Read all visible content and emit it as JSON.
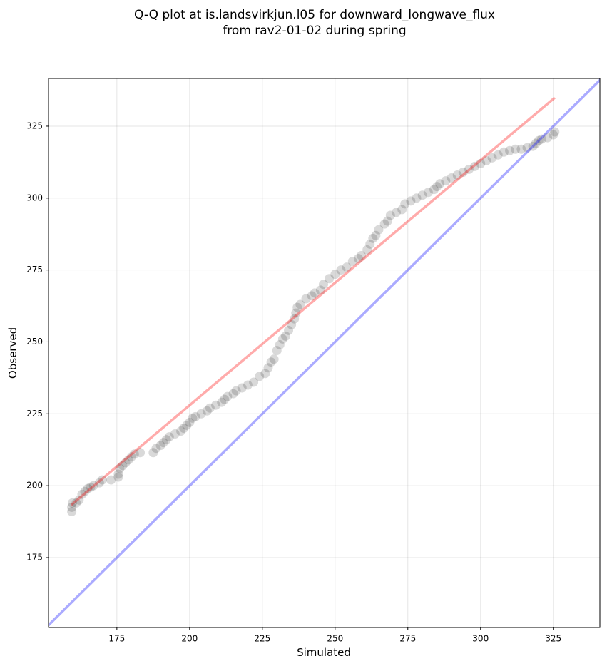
{
  "chart_data": {
    "type": "scatter",
    "title": [
      "Q-Q plot at is.landsvirkjun.l05 for downward_longwave_flux",
      "from rav2-01-02 during spring"
    ],
    "x_label": "Simulated",
    "y_label": "Observed",
    "xlim": [
      151.5,
      341
    ],
    "ylim": [
      150.7,
      341.6
    ],
    "xticks": [
      175,
      200,
      225,
      250,
      275,
      300,
      325
    ],
    "yticks": [
      175,
      200,
      225,
      250,
      275,
      300,
      325
    ],
    "grid": true,
    "points": {
      "color": "#000000",
      "alpha": 0.15,
      "x": [
        159.5,
        159.5,
        159.7,
        161,
        162,
        163,
        164,
        165,
        166,
        167,
        169,
        170,
        173,
        175.5,
        175.5,
        176,
        177,
        178,
        179,
        180,
        181,
        183,
        187.5,
        188.5,
        190,
        191,
        192,
        193,
        195,
        197,
        198,
        199,
        200,
        201,
        202,
        204,
        206,
        207,
        209,
        211,
        212,
        213,
        215,
        216,
        218,
        220,
        222,
        224,
        226,
        227,
        228,
        229,
        230,
        231,
        232,
        233,
        234,
        235,
        236,
        236.5,
        237,
        238,
        240,
        242,
        243,
        245,
        246,
        248,
        250,
        252,
        254,
        256,
        258,
        259,
        261,
        262,
        263,
        264,
        265,
        267,
        268,
        269,
        271,
        273,
        274,
        276,
        278,
        280,
        282,
        284,
        285,
        286,
        288,
        290,
        292,
        294,
        296,
        298,
        300,
        302,
        304,
        306,
        308,
        310,
        312,
        314,
        316,
        318,
        319,
        320,
        321,
        323,
        325,
        325.5
      ],
      "y": [
        191,
        192.5,
        194,
        194,
        195,
        197,
        198,
        199,
        199.5,
        200,
        201,
        202,
        202,
        203,
        204,
        206,
        207,
        208,
        209,
        210,
        211,
        211.5,
        211.5,
        213,
        214,
        215,
        216,
        217,
        218,
        219,
        220,
        221,
        222,
        223.5,
        224,
        225,
        226,
        227,
        228,
        229,
        230,
        231,
        232,
        233,
        234,
        235,
        236,
        238,
        239,
        241,
        243,
        244,
        247,
        249,
        251,
        252,
        254,
        256,
        258,
        260,
        262,
        263,
        265,
        266,
        267,
        268,
        270,
        272,
        273.5,
        275,
        276,
        278,
        279,
        280,
        282,
        284,
        286,
        287,
        289,
        291,
        292,
        294,
        295,
        296,
        298,
        299,
        300,
        301,
        302,
        303,
        304,
        305,
        306,
        307,
        308,
        309,
        310,
        311,
        312,
        313,
        314,
        315,
        316,
        316.5,
        317,
        317,
        317.5,
        318,
        319,
        320,
        320.5,
        321,
        322,
        323
      ]
    },
    "reference_lines": [
      {
        "color": "#ff0000",
        "alpha": 0.33,
        "x": [
          159.3,
          325.5
        ],
        "y": [
          193.3,
          334.9
        ]
      },
      {
        "color": "#0000ff",
        "alpha": 0.33,
        "x": [
          140,
          350
        ],
        "y": [
          140,
          350
        ]
      }
    ]
  }
}
